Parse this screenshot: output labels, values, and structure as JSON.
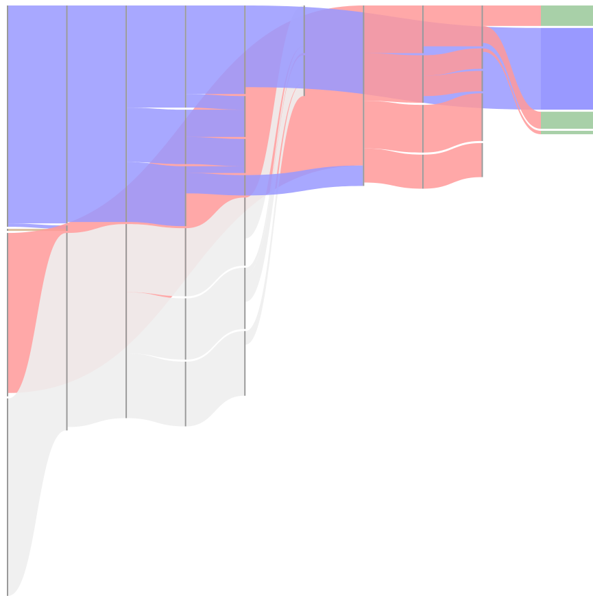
{
  "chart_data": {
    "type": "sankey",
    "nodes": [
      {
        "column": 0,
        "value": 325,
        "color": "#9999ff"
      },
      {
        "column": 0,
        "value": 3,
        "color": "#d2b48c"
      },
      {
        "column": 0,
        "value": 240,
        "color": "#ff9999"
      },
      {
        "column": 0,
        "value": 290,
        "color": "#eeeeee"
      },
      {
        "column": 1,
        "value": 320,
        "color": "#9999ff"
      },
      {
        "column": 1,
        "value": 8,
        "color": "#ff9999"
      },
      {
        "column": 1,
        "value": 290,
        "color": "#eeeeee"
      },
      {
        "column": 2,
        "value": 318,
        "color": "#9999ff"
      },
      {
        "column": 2,
        "value": 285,
        "color": "#eeeeee"
      },
      {
        "column": 3,
        "value": 150,
        "color": "#9999ff"
      },
      {
        "column": 3,
        "value": 80,
        "color": "#9999ff"
      },
      {
        "column": 3,
        "value": 88,
        "color": "#9999ff"
      },
      {
        "column": 3,
        "value": 100,
        "color": "#eeeeee"
      },
      {
        "column": 3,
        "value": 90,
        "color": "#eeeeee"
      },
      {
        "column": 3,
        "value": 95,
        "color": "#eeeeee"
      },
      {
        "column": 4,
        "value": 130,
        "color": "#9999ff"
      },
      {
        "column": 4,
        "value": 60,
        "color": "#9999ff"
      },
      {
        "column": 4,
        "value": 50,
        "color": "#9999ff"
      },
      {
        "column": 4,
        "value": 30,
        "color": "#9999ff"
      },
      {
        "column": 4,
        "value": 100,
        "color": "#eeeeee"
      },
      {
        "column": 4,
        "value": 90,
        "color": "#eeeeee"
      },
      {
        "column": 4,
        "value": 95,
        "color": "#eeeeee"
      },
      {
        "column": 5,
        "value": 70,
        "color": "#99c799"
      },
      {
        "column": 5,
        "value": 60,
        "color": "#eeeeee"
      },
      {
        "column": 6,
        "value": 265,
        "color": "#ff9999"
      },
      {
        "column": 7,
        "value": 70,
        "color": "#ff9999"
      },
      {
        "column": 7,
        "value": 70,
        "color": "#ff9999"
      },
      {
        "column": 7,
        "value": 70,
        "color": "#ff9999"
      },
      {
        "column": 7,
        "value": 50,
        "color": "#ff9999"
      },
      {
        "column": 8,
        "value": 60,
        "color": "#ff9999"
      },
      {
        "column": 8,
        "value": 30,
        "color": "#ff9999"
      },
      {
        "column": 8,
        "value": 30,
        "color": "#ff9999"
      },
      {
        "column": 8,
        "value": 70,
        "color": "#ff9999"
      },
      {
        "column": 8,
        "value": 50,
        "color": "#ff9999"
      },
      {
        "column": 9,
        "value": 30,
        "color": "#a8d0a8"
      },
      {
        "column": 9,
        "value": 120,
        "color": "#9999ff"
      },
      {
        "column": 9,
        "value": 25,
        "color": "#a8d0a8"
      },
      {
        "column": 9,
        "value": 5,
        "color": "#a8d0a8"
      }
    ],
    "links": [
      {
        "source": 0,
        "target": 4,
        "value": 320
      },
      {
        "source": 0,
        "target": 5,
        "value": 5
      },
      {
        "source": 1,
        "target": 5,
        "value": 3
      },
      {
        "source": 2,
        "target": 24,
        "value": 235
      },
      {
        "source": 3,
        "target": 6,
        "value": 290
      },
      {
        "source": 4,
        "target": 7,
        "value": 318
      },
      {
        "source": 6,
        "target": 8,
        "value": 285
      },
      {
        "source": 7,
        "target": 9,
        "value": 150
      },
      {
        "source": 7,
        "target": 10,
        "value": 80
      },
      {
        "source": 7,
        "target": 11,
        "value": 88
      },
      {
        "source": 8,
        "target": 12,
        "value": 100
      },
      {
        "source": 8,
        "target": 13,
        "value": 90
      },
      {
        "source": 8,
        "target": 14,
        "value": 95
      },
      {
        "source": 9,
        "target": 15,
        "value": 130
      },
      {
        "source": 9,
        "target": 16,
        "value": 20
      },
      {
        "source": 10,
        "target": 16,
        "value": 40
      },
      {
        "source": 10,
        "target": 17,
        "value": 40
      },
      {
        "source": 11,
        "target": 17,
        "value": 10
      },
      {
        "source": 11,
        "target": 18,
        "value": 30
      },
      {
        "source": 12,
        "target": 19,
        "value": 100
      },
      {
        "source": 13,
        "target": 20,
        "value": 90
      },
      {
        "source": 14,
        "target": 21,
        "value": 95
      },
      {
        "source": 19,
        "target": 22,
        "value": 60
      },
      {
        "source": 20,
        "target": 22,
        "value": 10
      },
      {
        "source": 20,
        "target": 23,
        "value": 40
      },
      {
        "source": 21,
        "target": 23,
        "value": 20
      },
      {
        "source": 18,
        "target": 24,
        "value": 30
      },
      {
        "source": 15,
        "target": 35,
        "value": 120
      },
      {
        "source": 24,
        "target": 25,
        "value": 70
      },
      {
        "source": 24,
        "target": 26,
        "value": 70
      },
      {
        "source": 24,
        "target": 27,
        "value": 70
      },
      {
        "source": 24,
        "target": 28,
        "value": 50
      },
      {
        "source": 25,
        "target": 29,
        "value": 60
      },
      {
        "source": 26,
        "target": 30,
        "value": 30
      },
      {
        "source": 26,
        "target": 31,
        "value": 30
      },
      {
        "source": 27,
        "target": 32,
        "value": 70
      },
      {
        "source": 28,
        "target": 33,
        "value": 50
      },
      {
        "source": 29,
        "target": 34,
        "value": 30
      },
      {
        "source": 29,
        "target": 36,
        "value": 25
      },
      {
        "source": 30,
        "target": 37,
        "value": 5
      }
    ]
  }
}
